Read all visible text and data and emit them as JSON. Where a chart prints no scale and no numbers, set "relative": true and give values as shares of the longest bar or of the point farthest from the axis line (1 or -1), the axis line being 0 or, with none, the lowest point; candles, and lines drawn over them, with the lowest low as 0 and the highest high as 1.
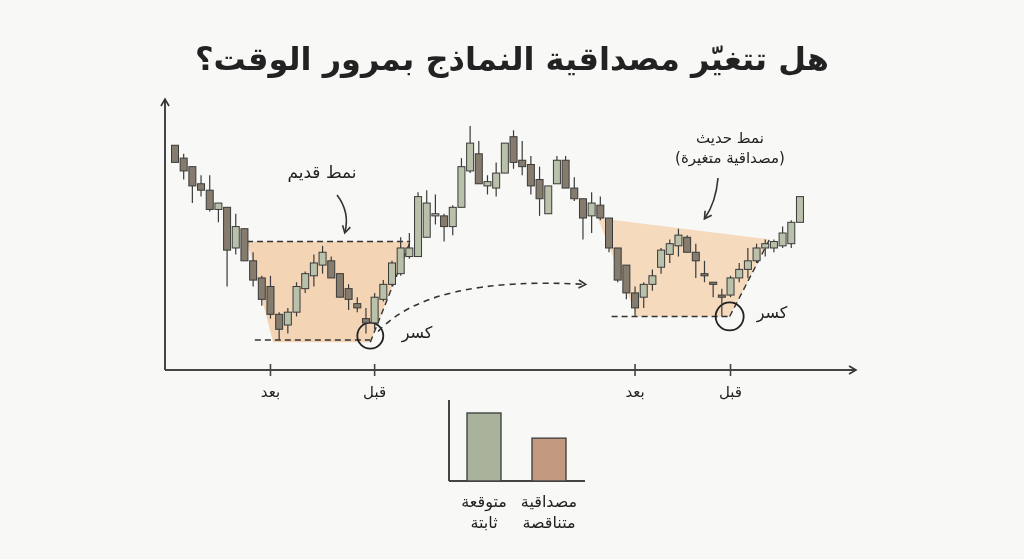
{
  "chart_data": [
    {
      "type": "candlestick",
      "title": "هل تتغيّر مصداقية النماذج بمرور الوقت؟",
      "relative": true,
      "tick_labels": "x",
      "categories": [
        null,
        null,
        null,
        null,
        null,
        null,
        null,
        null,
        null,
        null,
        null,
        "بعد",
        null,
        null,
        null,
        null,
        null,
        null,
        null,
        null,
        null,
        null,
        null,
        "قبل",
        null,
        null,
        null,
        null,
        null,
        null,
        null,
        null,
        null,
        null,
        null,
        null,
        null,
        null,
        null,
        null,
        null,
        null,
        null,
        null,
        null,
        null,
        null,
        null,
        null,
        null,
        null,
        null,
        null,
        "بعد",
        null,
        null,
        null,
        null,
        null,
        null,
        null,
        null,
        null,
        null,
        "قبل",
        null,
        null,
        null,
        null,
        null,
        null,
        null,
        null
      ],
      "ohlc": [
        [
          0.91,
          0.91,
          0.83,
          0.83
        ],
        [
          0.85,
          0.87,
          0.75,
          0.79
        ],
        [
          0.81,
          0.81,
          0.64,
          0.72
        ],
        [
          0.73,
          0.77,
          0.67,
          0.7
        ],
        [
          0.7,
          0.77,
          0.6,
          0.61
        ],
        [
          0.61,
          0.64,
          0.55,
          0.64
        ],
        [
          0.62,
          0.62,
          0.25,
          0.42
        ],
        [
          0.43,
          0.59,
          0.4,
          0.53
        ],
        [
          0.52,
          0.52,
          0.37,
          0.37
        ],
        [
          0.37,
          0.41,
          0.25,
          0.28
        ],
        [
          0.29,
          0.3,
          0.16,
          0.19
        ],
        [
          0.25,
          0.3,
          0.1,
          0.12
        ],
        [
          0.12,
          0.13,
          0,
          0.05
        ],
        [
          0.07,
          0.15,
          0.03,
          0.13
        ],
        [
          0.13,
          0.27,
          0.11,
          0.25
        ],
        [
          0.24,
          0.32,
          0.22,
          0.31
        ],
        [
          0.3,
          0.4,
          0.25,
          0.36
        ],
        [
          0.35,
          0.44,
          0.31,
          0.41
        ],
        [
          0.37,
          0.39,
          0.29,
          0.29
        ],
        [
          0.31,
          0.31,
          0.2,
          0.2
        ],
        [
          0.24,
          0.26,
          0.14,
          0.19
        ],
        [
          0.17,
          0.2,
          0.13,
          0.15
        ],
        [
          0.1,
          0.15,
          0.03,
          0.08
        ],
        [
          0.08,
          0.22,
          0.05,
          0.2
        ],
        [
          0.19,
          0.28,
          0.18,
          0.26
        ],
        [
          0.26,
          0.37,
          0.25,
          0.36
        ],
        [
          0.31,
          0.48,
          0.3,
          0.43
        ],
        [
          0.39,
          0.5,
          0.38,
          0.43
        ],
        [
          0.39,
          0.69,
          0.39,
          0.67
        ],
        [
          0.48,
          0.7,
          0.48,
          0.64
        ],
        [
          0.58,
          0.68,
          0.54,
          0.59
        ],
        [
          0.58,
          0.59,
          0.46,
          0.53
        ],
        [
          0.53,
          0.63,
          0.49,
          0.62
        ],
        [
          0.62,
          0.85,
          0.62,
          0.81
        ],
        [
          0.79,
          1,
          0.78,
          0.92
        ],
        [
          0.87,
          0.93,
          0.73,
          0.73
        ],
        [
          0.72,
          0.77,
          0.68,
          0.74
        ],
        [
          0.71,
          0.83,
          0.67,
          0.78
        ],
        [
          0.78,
          0.92,
          0.78,
          0.92
        ],
        [
          0.95,
          0.98,
          0.8,
          0.83
        ],
        [
          0.84,
          0.93,
          0.77,
          0.81
        ],
        [
          0.82,
          0.86,
          0.68,
          0.72
        ],
        [
          0.75,
          0.81,
          0.58,
          0.66
        ],
        [
          0.59,
          0.72,
          0.59,
          0.72
        ],
        [
          0.73,
          0.86,
          0.73,
          0.84
        ],
        [
          0.84,
          0.86,
          0.71,
          0.71
        ],
        [
          0.71,
          0.76,
          0.65,
          0.66
        ],
        [
          0.66,
          0.66,
          0.47,
          0.57
        ],
        [
          0.58,
          0.69,
          0.5,
          0.64
        ],
        [
          0.63,
          0.67,
          0.56,
          0.57
        ],
        [
          0.57,
          0.57,
          0.41,
          0.43
        ],
        [
          0.43,
          0.43,
          0.27,
          0.28
        ],
        [
          0.35,
          0.35,
          0.19,
          0.22
        ],
        [
          0.22,
          0.25,
          0.11,
          0.15
        ],
        [
          0.2,
          0.27,
          0.15,
          0.26
        ],
        [
          0.26,
          0.33,
          0.23,
          0.3
        ],
        [
          0.34,
          0.43,
          0.31,
          0.42
        ],
        [
          0.4,
          0.47,
          0.36,
          0.45
        ],
        [
          0.44,
          0.52,
          0.39,
          0.49
        ],
        [
          0.48,
          0.49,
          0.41,
          0.41
        ],
        [
          0.41,
          0.45,
          0.29,
          0.37
        ],
        [
          0.31,
          0.37,
          0.27,
          0.3
        ],
        [
          0.27,
          0.27,
          0.2,
          0.26
        ],
        [
          0.21,
          0.24,
          0.11,
          0.2
        ],
        [
          0.21,
          0.3,
          0.2,
          0.29
        ],
        [
          0.29,
          0.36,
          0.27,
          0.33
        ],
        [
          0.33,
          0.43,
          0.29,
          0.37
        ],
        [
          0.37,
          0.45,
          0.36,
          0.43
        ],
        [
          0.43,
          0.47,
          0.39,
          0.45
        ],
        [
          0.43,
          0.47,
          0.41,
          0.46
        ],
        [
          0.44,
          0.53,
          0.43,
          0.5
        ],
        [
          0.45,
          0.56,
          0.43,
          0.55
        ],
        [
          0.55,
          0.67,
          0.55,
          0.67
        ]
      ],
      "colors": [
        "#867c6d",
        "#867c6d",
        "#867c6d",
        "#867c6d",
        "#867c6d",
        "#b9c1ab",
        "#867c6d",
        "#b9c1ab",
        "#867c6d",
        "#867c6d",
        "#867c6d",
        "#867c6d",
        "#867c6d",
        "#b9c1ab",
        "#b9c1ab",
        "#b9c1ab",
        "#b9c1ab",
        "#b9c1ab",
        "#867c6d",
        "#867c6d",
        "#867c6d",
        "#867c6d",
        "#867c6d",
        "#b9c1ab",
        "#b9c1ab",
        "#b9c1ab",
        "#b9c1ab",
        "#b9c1ab",
        "#b9c1ab",
        "#b9c1ab",
        "#b9c1ab",
        "#867c6d",
        "#b9c1ab",
        "#b9c1ab",
        "#b9c1ab",
        "#867c6d",
        "#b9c1ab",
        "#b9c1ab",
        "#b9c1ab",
        "#867c6d",
        "#867c6d",
        "#867c6d",
        "#867c6d",
        "#b9c1ab",
        "#b9c1ab",
        "#867c6d",
        "#867c6d",
        "#867c6d",
        "#b9c1ab",
        "#867c6d",
        "#867c6d",
        "#867c6d",
        "#867c6d",
        "#867c6d",
        "#b9c1ab",
        "#b9c1ab",
        "#b9c1ab",
        "#b9c1ab",
        "#b9c1ab",
        "#867c6d",
        "#867c6d",
        "#867c6d",
        "#867c6d",
        "#867c6d",
        "#b9c1ab",
        "#b9c1ab",
        "#b9c1ab",
        "#b9c1ab",
        "#b9c1ab",
        "#b9c1ab",
        "#b9c1ab",
        "#b9c1ab",
        "#b9c1ab"
      ],
      "ref_lines": [
        {
          "axis": "y",
          "value": 0.46,
          "line_style": "dashed"
        },
        {
          "axis": "y",
          "value": 0,
          "line_style": "dashed"
        },
        {
          "axis": "y",
          "value": 0.11,
          "line_style": "dashed"
        }
      ],
      "annotations": [
        "نمط قديم",
        "نمط حديث\n(مصداقية متغيرة)",
        "كسر",
        "كسر"
      ]
    },
    {
      "type": "bar",
      "relative": true,
      "categories": [
        "متوقعة\nثابتة",
        "مصداقية\nمتناقصة"
      ],
      "values": [
        1,
        0.63
      ],
      "colors": [
        "#a9b29a",
        "#c39a80"
      ]
    }
  ]
}
